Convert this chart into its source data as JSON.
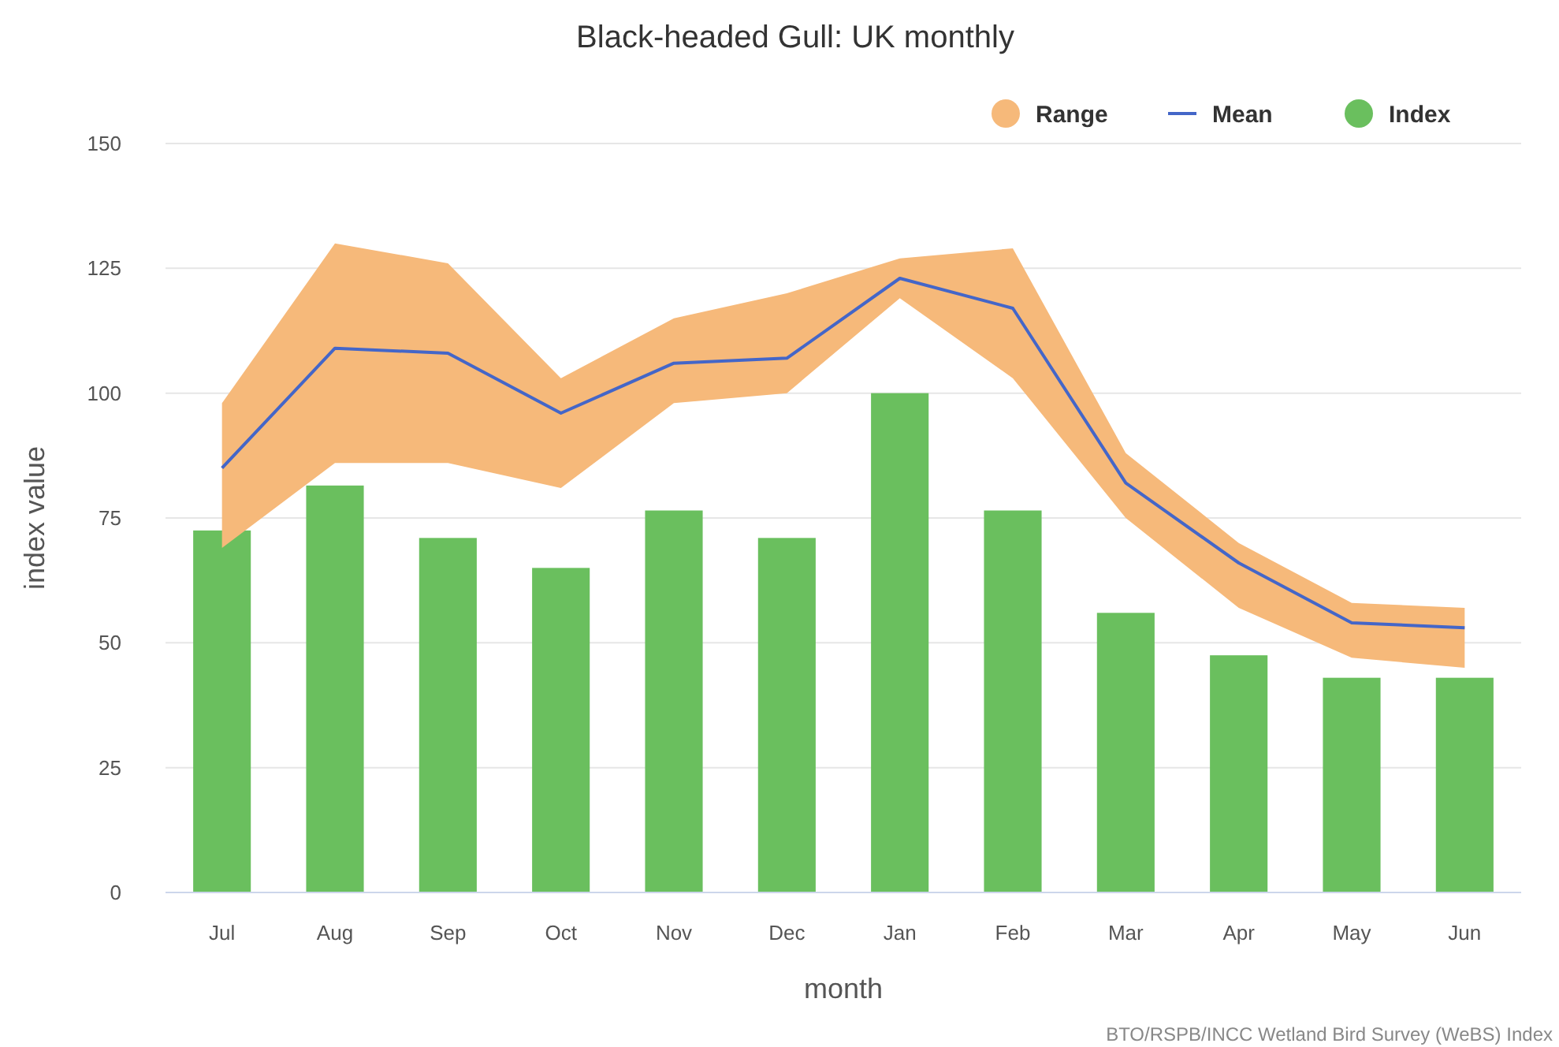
{
  "chart_data": {
    "type": "bar",
    "title": "Black-headed Gull: UK monthly",
    "xlabel": "month",
    "ylabel": "index value",
    "annotations": [
      "BTO/RSPB/INCC Wetland Bird Survey (WeBS) Index"
    ],
    "categories": [
      "Jul",
      "Aug",
      "Sep",
      "Oct",
      "Nov",
      "Dec",
      "Jan",
      "Feb",
      "Mar",
      "Apr",
      "May",
      "Jun"
    ],
    "series": [
      {
        "name": "Range",
        "type": "area",
        "color": "#f6b97a",
        "values": [
          null,
          null,
          null,
          null,
          null,
          null,
          null,
          null,
          null,
          null,
          null,
          null
        ],
        "lower": [
          69,
          86,
          86,
          81,
          98,
          100,
          119,
          103,
          75,
          57,
          47,
          45
        ],
        "upper": [
          98,
          130,
          126,
          103,
          115,
          120,
          127,
          129,
          88,
          70,
          58,
          57
        ]
      },
      {
        "name": "Mean",
        "type": "line",
        "color": "#4466c8",
        "values": [
          85,
          109,
          108,
          96,
          106,
          107,
          123,
          117,
          82,
          66,
          54,
          53
        ]
      },
      {
        "name": "Index",
        "color": "#6abf5e",
        "values": [
          72.5,
          81.5,
          71,
          65,
          76.5,
          71,
          100,
          76.5,
          56,
          47.5,
          43,
          43
        ]
      }
    ],
    "ylim": [
      0,
      150
    ],
    "yticks": [
      0,
      25,
      50,
      75,
      100,
      125,
      150
    ],
    "grid": "y",
    "legend": "top right",
    "marker": "none"
  }
}
